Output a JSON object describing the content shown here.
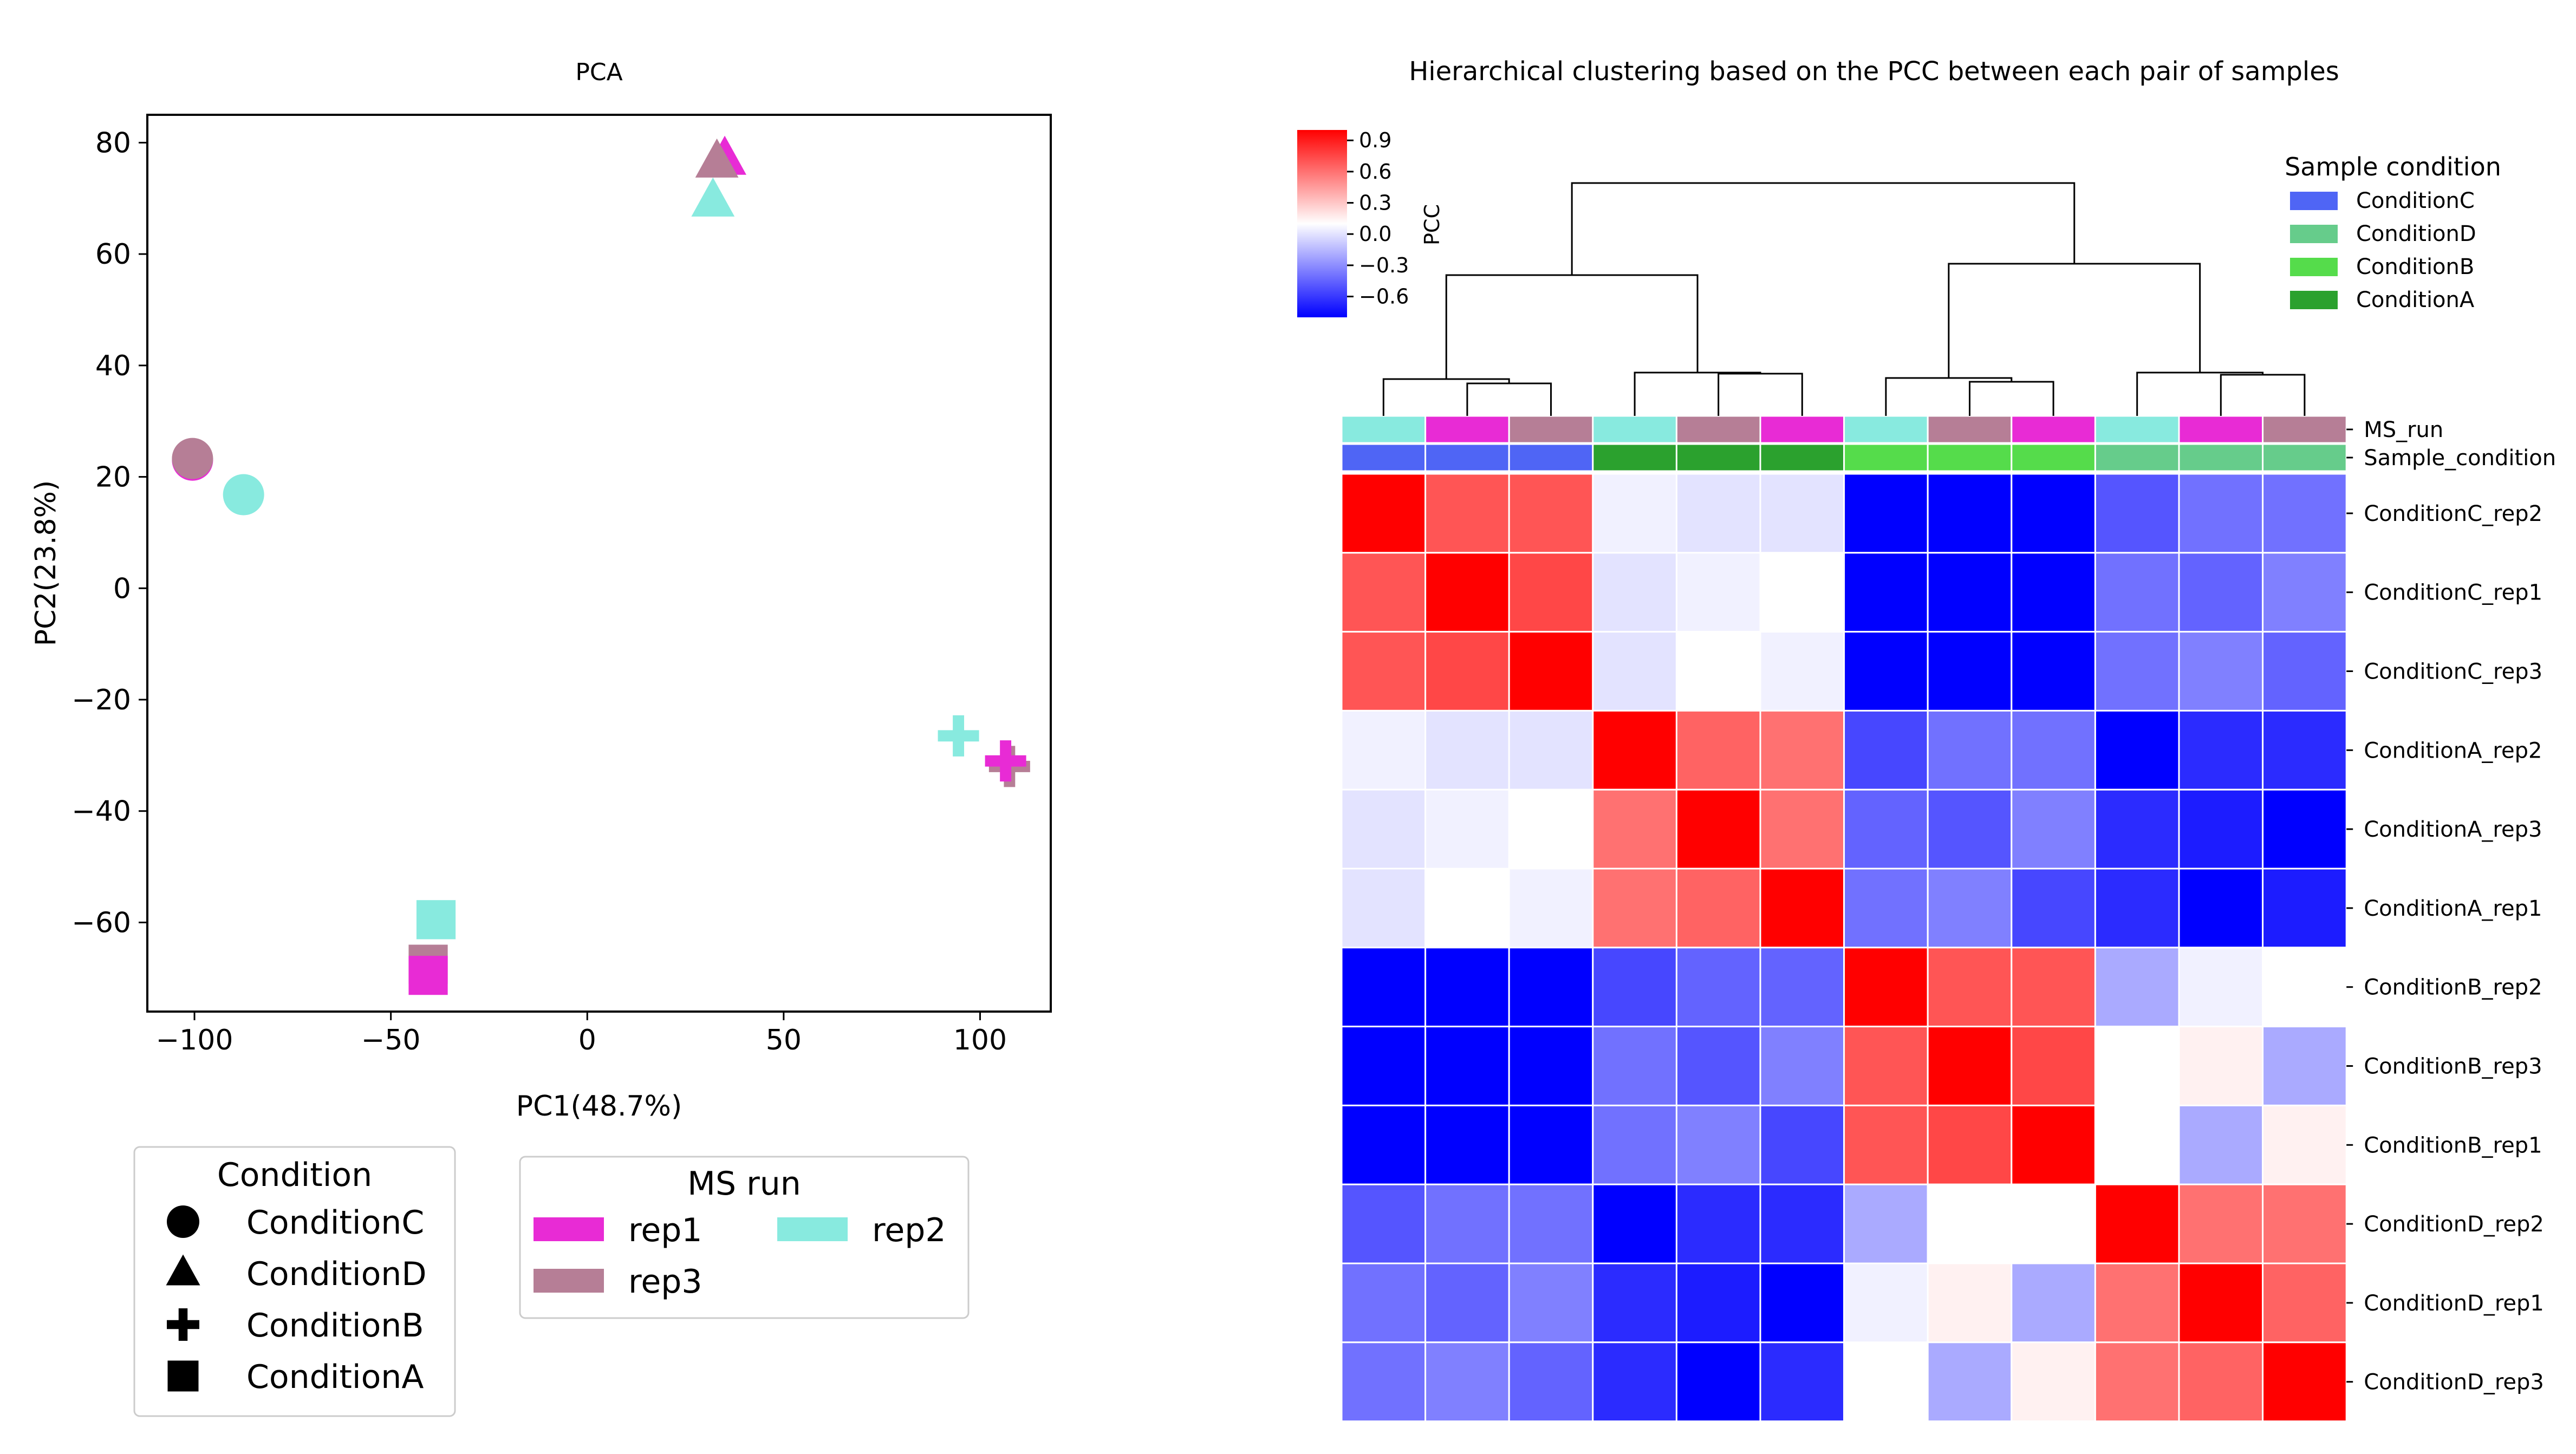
{
  "chart_data": [
    {
      "type": "scatter",
      "title": "PCA",
      "xlabel": "PC1(48.7%)",
      "ylabel": "PC2(23.8%)",
      "xlim": [
        -112,
        118
      ],
      "ylim": [
        -76,
        85
      ],
      "xticks": [
        -100,
        -50,
        0,
        50,
        100
      ],
      "xtick_labels": [
        "−100",
        "−50",
        "0",
        "50",
        "100"
      ],
      "yticks": [
        80,
        60,
        40,
        20,
        0,
        -20,
        -40,
        -60
      ],
      "ytick_labels": [
        "80",
        "60",
        "40",
        "20",
        "0",
        "−20",
        "−40",
        "−60"
      ],
      "grid": false,
      "points": [
        {
          "condition": "ConditionC",
          "run": "rep1",
          "x": -100.5,
          "y": 23.0
        },
        {
          "condition": "ConditionC",
          "run": "rep3",
          "x": -100.5,
          "y": 23.3
        },
        {
          "condition": "ConditionC",
          "run": "rep2",
          "x": -87.5,
          "y": 16.8
        },
        {
          "condition": "ConditionD",
          "run": "rep1",
          "x": 35.0,
          "y": 77.0
        },
        {
          "condition": "ConditionD",
          "run": "rep3",
          "x": 33.0,
          "y": 76.5
        },
        {
          "condition": "ConditionD",
          "run": "rep2",
          "x": 32.0,
          "y": 69.5
        },
        {
          "condition": "ConditionB",
          "run": "rep2",
          "x": 94.5,
          "y": -26.5
        },
        {
          "condition": "ConditionB",
          "run": "rep3",
          "x": 107.5,
          "y": -32.0
        },
        {
          "condition": "ConditionB",
          "run": "rep1",
          "x": 106.5,
          "y": -31.0
        },
        {
          "condition": "ConditionA",
          "run": "rep2",
          "x": -38.5,
          "y": -59.5
        },
        {
          "condition": "ConditionA",
          "run": "rep3",
          "x": -40.5,
          "y": -67.5
        },
        {
          "condition": "ConditionA",
          "run": "rep1",
          "x": -40.5,
          "y": -69.5
        }
      ],
      "legend_condition": {
        "title": "Condition",
        "placement": "below-left",
        "entries": [
          {
            "label": "ConditionC",
            "marker": "circle"
          },
          {
            "label": "ConditionD",
            "marker": "triangle"
          },
          {
            "label": "ConditionB",
            "marker": "plus"
          },
          {
            "label": "ConditionA",
            "marker": "square"
          }
        ]
      },
      "legend_run": {
        "title": "MS run",
        "placement": "below-center",
        "entries": [
          {
            "label": "rep1",
            "color": "#e82bd5"
          },
          {
            "label": "rep2",
            "color": "#88eadf"
          },
          {
            "label": "rep3",
            "color": "#b67e96"
          }
        ]
      }
    },
    {
      "type": "heatmap",
      "title": "Hierarchical clustering based on the PCC between each pair of samples",
      "rows": [
        "ConditionC_rep2",
        "ConditionC_rep1",
        "ConditionC_rep3",
        "ConditionA_rep2",
        "ConditionA_rep3",
        "ConditionA_rep1",
        "ConditionB_rep2",
        "ConditionB_rep3",
        "ConditionB_rep1",
        "ConditionD_rep2",
        "ConditionD_rep1",
        "ConditionD_rep3"
      ],
      "columns": [
        "ConditionC_rep2",
        "ConditionC_rep1",
        "ConditionC_rep3",
        "ConditionA_rep2",
        "ConditionA_rep3",
        "ConditionA_rep1",
        "ConditionB_rep2",
        "ConditionB_rep3",
        "ConditionB_rep1",
        "ConditionD_rep2",
        "ConditionD_rep1",
        "ConditionD_rep3"
      ],
      "values": [
        [
          1.0,
          0.7,
          0.7,
          0.05,
          0.0,
          0.0,
          -0.9,
          -0.8,
          -0.8,
          -0.5,
          -0.4,
          -0.4
        ],
        [
          0.7,
          1.0,
          0.75,
          0.0,
          0.05,
          0.1,
          -0.8,
          -0.85,
          -0.95,
          -0.4,
          -0.45,
          -0.35
        ],
        [
          0.7,
          0.75,
          1.0,
          0.0,
          0.1,
          0.05,
          -0.8,
          -0.95,
          -0.8,
          -0.4,
          -0.35,
          -0.45
        ],
        [
          0.05,
          0.0,
          0.0,
          1.0,
          0.65,
          0.6,
          -0.55,
          -0.4,
          -0.4,
          -0.8,
          -0.65,
          -0.65
        ],
        [
          0.0,
          0.05,
          0.1,
          0.6,
          1.0,
          0.6,
          -0.45,
          -0.5,
          -0.35,
          -0.65,
          -0.7,
          -0.85
        ],
        [
          0.0,
          0.1,
          0.05,
          0.6,
          0.65,
          1.0,
          -0.4,
          -0.35,
          -0.55,
          -0.65,
          -0.85,
          -0.7
        ],
        [
          -0.95,
          -0.8,
          -0.8,
          -0.55,
          -0.45,
          -0.45,
          1.0,
          0.7,
          0.7,
          -0.2,
          0.05,
          0.1
        ],
        [
          -0.85,
          -0.85,
          -0.95,
          -0.4,
          -0.5,
          -0.35,
          0.7,
          1.0,
          0.75,
          0.1,
          0.15,
          -0.2
        ],
        [
          -0.85,
          -0.95,
          -0.85,
          -0.4,
          -0.35,
          -0.55,
          0.7,
          0.75,
          1.0,
          0.1,
          -0.2,
          0.15
        ],
        [
          -0.5,
          -0.4,
          -0.4,
          -0.85,
          -0.65,
          -0.65,
          -0.2,
          0.1,
          0.1,
          1.0,
          0.6,
          0.6
        ],
        [
          -0.4,
          -0.45,
          -0.35,
          -0.65,
          -0.7,
          -0.85,
          0.05,
          0.15,
          -0.2,
          0.6,
          1.0,
          0.65
        ],
        [
          -0.4,
          -0.35,
          -0.45,
          -0.65,
          -0.85,
          -0.65,
          0.1,
          -0.2,
          0.15,
          0.6,
          0.65,
          1.0
        ]
      ],
      "colorbar": {
        "label": "PCC",
        "range": [
          -0.8,
          1.0
        ],
        "ticks": [
          0.9,
          0.6,
          0.3,
          0.0,
          -0.3,
          -0.6
        ],
        "tick_labels": [
          "0.9",
          "0.6",
          "0.3",
          "0.0",
          "−0.3",
          "−0.6"
        ],
        "colors": [
          "#0000ff",
          "#ffffff",
          "#ff0000"
        ]
      },
      "annotation_rows": [
        {
          "label": "MS_run",
          "values": [
            "rep2",
            "rep1",
            "rep3",
            "rep2",
            "rep3",
            "rep1",
            "rep2",
            "rep3",
            "rep1",
            "rep2",
            "rep1",
            "rep3"
          ]
        },
        {
          "label": "Sample_condition",
          "values": [
            "ConditionC",
            "ConditionC",
            "ConditionC",
            "ConditionA",
            "ConditionA",
            "ConditionA",
            "ConditionB",
            "ConditionB",
            "ConditionB",
            "ConditionD",
            "ConditionD",
            "ConditionD"
          ]
        }
      ],
      "legend": {
        "title": "Sample condition",
        "placement": "top-right",
        "entries": [
          {
            "label": "ConditionC",
            "color": "#4f65f5"
          },
          {
            "label": "ConditionD",
            "color": "#66cc8b"
          },
          {
            "label": "ConditionB",
            "color": "#55dc4b"
          },
          {
            "label": "ConditionA",
            "color": "#2ba12e"
          }
        ]
      }
    }
  ]
}
